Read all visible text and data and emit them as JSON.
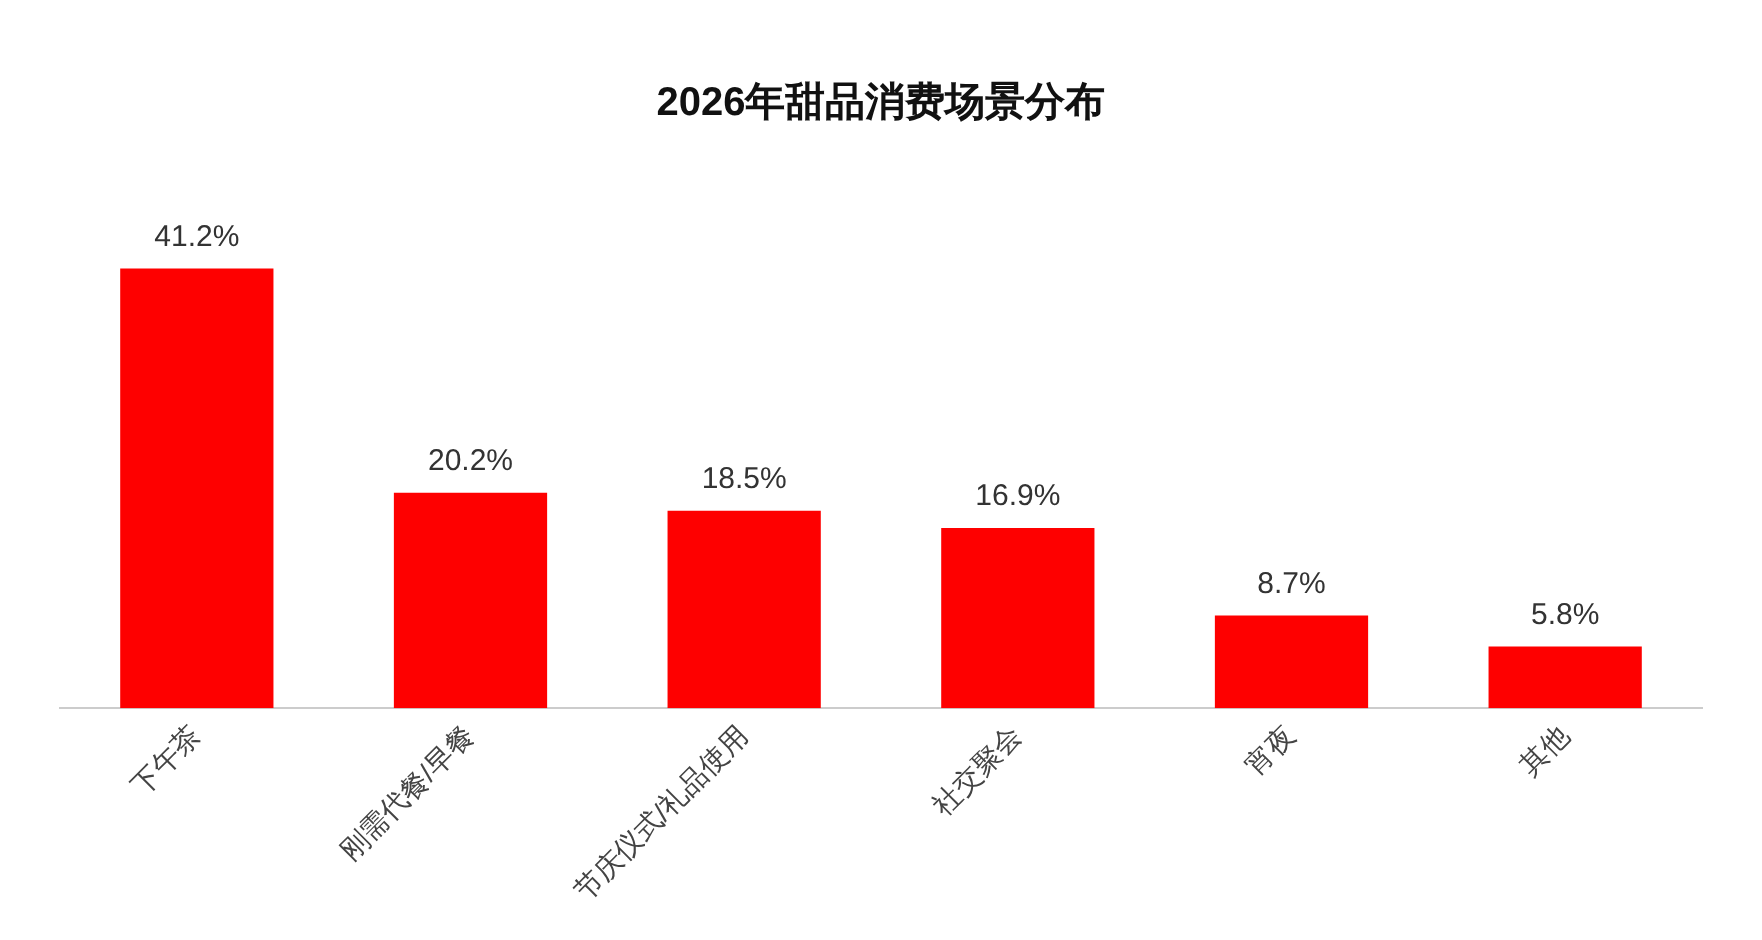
{
  "chart_data": {
    "type": "bar",
    "title": "2026年甜品消费场景分布",
    "categories": [
      "下午茶",
      "刚需代餐/早餐",
      "节庆仪式/礼品使用",
      "社交聚会",
      "宵夜",
      "其他"
    ],
    "values": [
      41.2,
      20.2,
      18.5,
      16.9,
      8.7,
      5.8
    ],
    "value_labels": [
      "41.2%",
      "20.2%",
      "18.5%",
      "16.9%",
      "8.7%",
      "5.8%"
    ],
    "color": "#fe0000",
    "grid": false,
    "legend": false
  }
}
